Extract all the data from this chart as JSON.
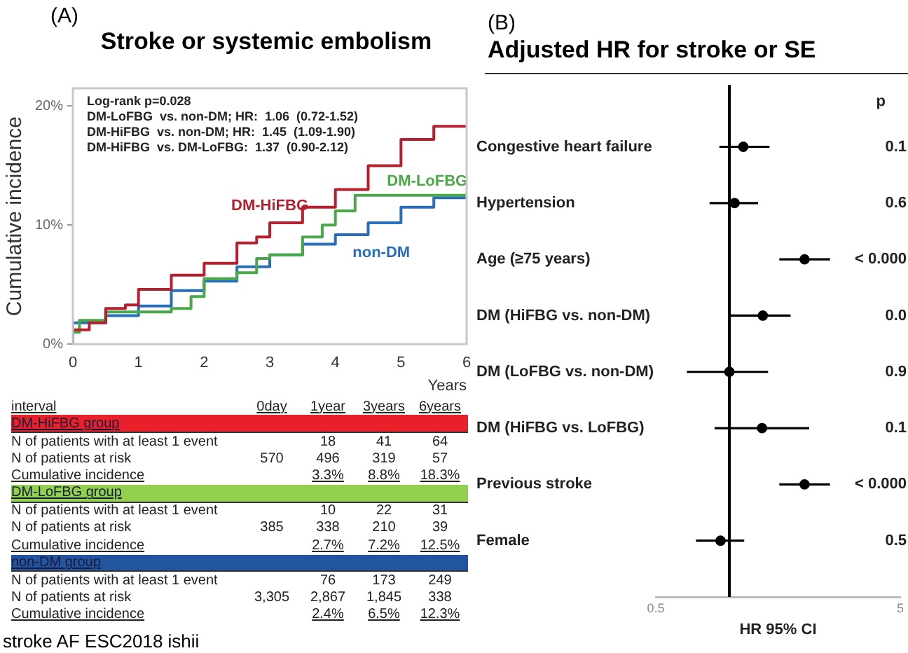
{
  "chart_data": [
    {
      "type": "step",
      "subtitle": "(A)",
      "title": "Stroke or systemic embolism",
      "xlabel": "Years",
      "ylabel": "Cumulative incidence",
      "xlim": [
        0,
        6
      ],
      "xticks": [
        0,
        1,
        2,
        3,
        4,
        5,
        6
      ],
      "ylim": [
        0,
        21.5
      ],
      "yticks": [
        {
          "value": 0,
          "label": "0%"
        },
        {
          "value": 10,
          "label": "10%"
        },
        {
          "value": 20,
          "label": "20%"
        }
      ],
      "grid": false,
      "legend": false,
      "marker": "none",
      "annotations": [
        "Log-rank p=0.028",
        "DM-LoFBG  vs. non-DM; HR:  1.06  (0.72-1.52)",
        "DM-HiFBG  vs. non-DM; HR:  1.45  (1.09-1.90)",
        "DM-HiFBG  vs. DM-LoFBG:  1.37  (0.90-2.12)"
      ],
      "series": [
        {
          "name": "DM-HiFBG",
          "color": "#b5202e",
          "x": [
            0,
            0.25,
            0.5,
            0.8,
            1,
            1.5,
            2,
            2.5,
            2.8,
            3,
            3.5,
            4,
            4.5,
            5,
            5.5,
            5.7,
            6
          ],
          "values": [
            0,
            1.2,
            1.8,
            3.0,
            3.3,
            4.6,
            5.8,
            6.8,
            8.5,
            9.0,
            10.2,
            11.5,
            13.0,
            15.0,
            17.2,
            18.3,
            18.3
          ]
        },
        {
          "name": "DM-LoFBG",
          "color": "#4aa84a",
          "x": [
            0,
            0.1,
            0.5,
            1,
            1.5,
            1.8,
            2,
            2.5,
            2.8,
            3,
            3.5,
            3.8,
            4,
            4.3,
            4.8,
            6
          ],
          "values": [
            0,
            1.0,
            2.0,
            2.7,
            2.7,
            3.0,
            4.0,
            5.5,
            6.0,
            7.2,
            7.5,
            9.0,
            10.0,
            11.2,
            12.5,
            12.5
          ]
        },
        {
          "name": "non-DM",
          "color": "#2a6ebb",
          "x": [
            0,
            0.5,
            1,
            1.5,
            2,
            2.5,
            3,
            3.5,
            4,
            4.5,
            5,
            5.5,
            5.8,
            6
          ],
          "values": [
            0,
            1.8,
            2.4,
            3.2,
            4.5,
            5.3,
            6.5,
            7.5,
            8.4,
            9.2,
            10.2,
            11.5,
            12.3,
            12.3
          ]
        }
      ]
    },
    {
      "type": "other",
      "ylabel": "interval",
      "categories": [
        "0day",
        "1year",
        "3years",
        "6years"
      ],
      "y_categories": [
        "DM-HiFBG group",
        "N of patients with at least 1 event",
        "N of patients at risk",
        "Cumulative incidence",
        "DM-LoFBG group",
        "N of patients with at least 1 event",
        "N of patients at risk",
        "Cumulative incidence",
        "non-DM group",
        "N of patients with at least 1 event",
        "N of patients at risk",
        "Cumulative incidence"
      ],
      "cell_labels": [
        [
          null,
          null,
          null,
          null
        ],
        [
          null,
          "18",
          "41",
          "64"
        ],
        [
          "570",
          "496",
          "319",
          "57"
        ],
        [
          null,
          "3.3%",
          "8.8%",
          "18.3%"
        ],
        [
          null,
          null,
          null,
          null
        ],
        [
          null,
          "10",
          "22",
          "31"
        ],
        [
          "385",
          "338",
          "210",
          "39"
        ],
        [
          null,
          "2.7%",
          "7.2%",
          "12.5%"
        ],
        [
          null,
          null,
          null,
          null
        ],
        [
          null,
          "76",
          "173",
          "249"
        ],
        [
          "3,305",
          "2,867",
          "1,845",
          "338"
        ],
        [
          null,
          "2.4%",
          "6.5%",
          "12.3%"
        ]
      ],
      "colors": [
        "#e8202a",
        null,
        null,
        null,
        "#92d050",
        null,
        null,
        null,
        "#2255a0",
        null,
        null,
        null
      ],
      "annotations": [
        "stroke AF ESC2018 ishii"
      ]
    },
    {
      "type": "scatter",
      "orientation": "horizontal",
      "subtitle": "(B)",
      "title": "Adjusted HR for stroke or SE",
      "xlabel": "HR 95% CI",
      "categories": [
        "Congestive heart failure",
        "Hypertension",
        "Age (≥75 years)",
        "DM (HiFBG vs. non-DM)",
        "DM (LoFBG vs. non-DM)",
        "DM (HiFBG vs. LoFBG)",
        "Previous stroke",
        "Female"
      ],
      "values": [
        1.14,
        1.05,
        2.03,
        1.37,
        1.0,
        1.36,
        2.03,
        0.92
      ],
      "errors": [
        [
          0.91,
          1.46
        ],
        [
          0.83,
          1.31
        ],
        [
          1.6,
          2.58
        ],
        [
          1.01,
          1.78
        ],
        [
          0.67,
          1.44
        ],
        [
          0.87,
          2.12
        ],
        [
          1.6,
          2.58
        ],
        [
          0.73,
          1.15
        ]
      ],
      "color": "#000000",
      "log": "x",
      "xlim": [
        0.5,
        5
      ],
      "xticks": [
        0.5,
        5
      ],
      "ref_lines": [
        {
          "axis": "x",
          "value": 1,
          "color": "#000000"
        }
      ],
      "y2label": "p",
      "y2_categories": [
        "0.1",
        "0.6",
        "< 0.000",
        "0.0",
        "0.9",
        "0.1",
        "< 0.000",
        "0.5"
      ],
      "grid": false,
      "legend": false,
      "marker": "circle"
    }
  ]
}
